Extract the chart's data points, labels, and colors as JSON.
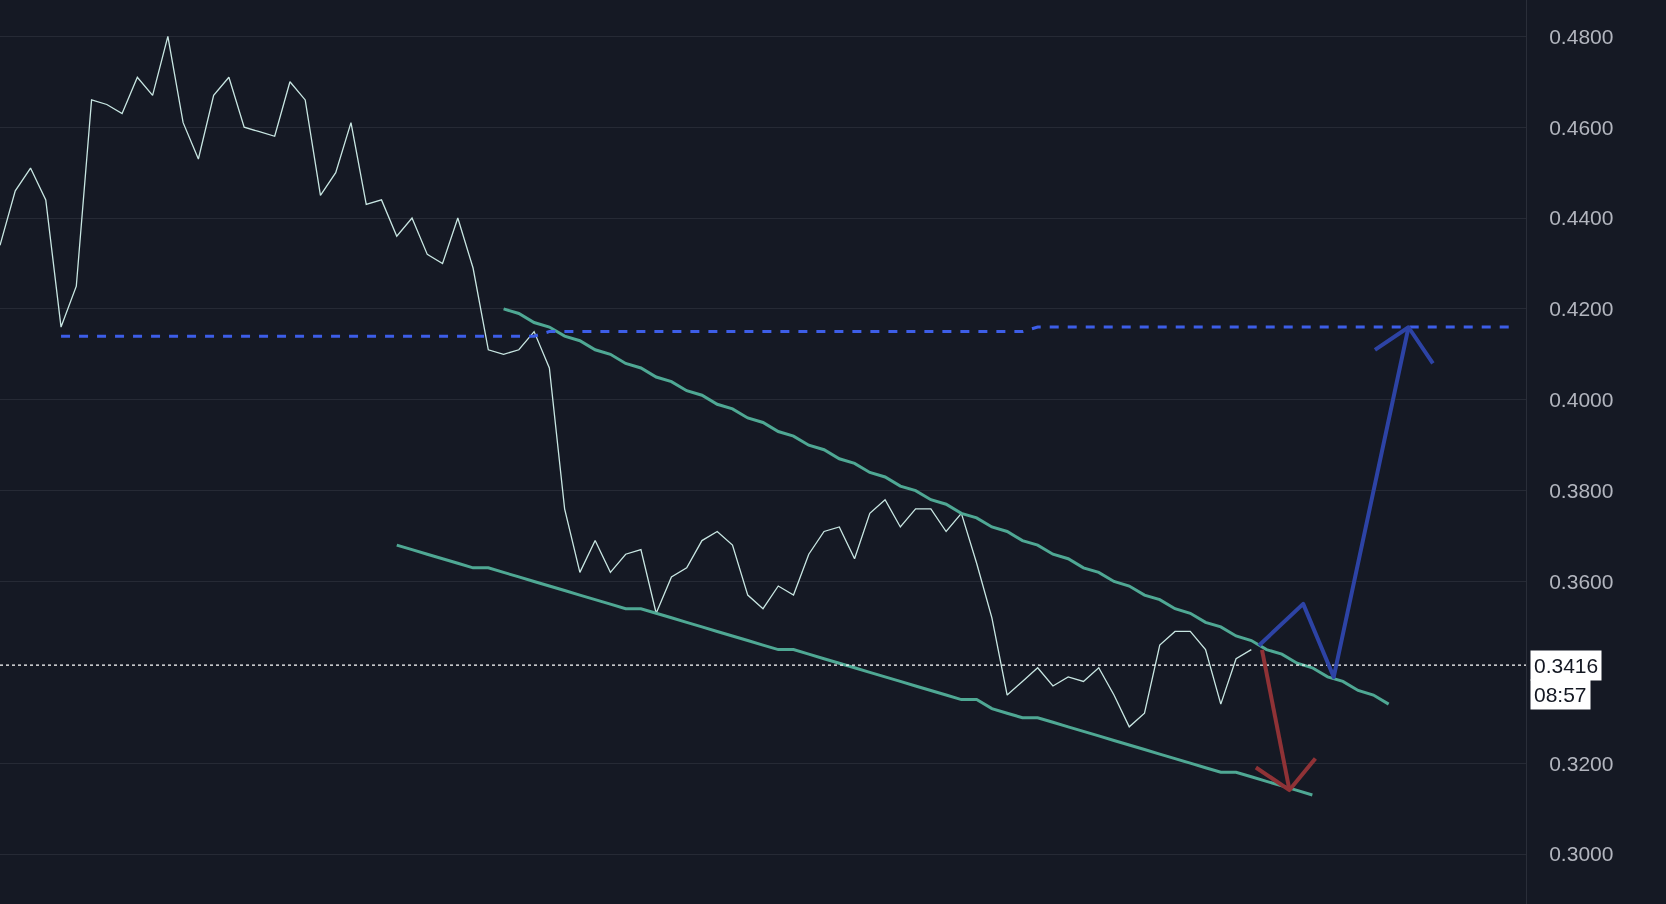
{
  "chart_data": {
    "type": "line",
    "categories": [
      null,
      null,
      null,
      null,
      null,
      null,
      null,
      null,
      null,
      null,
      null,
      null,
      null,
      null,
      null,
      null,
      null,
      null,
      null,
      null,
      null,
      null,
      null,
      null,
      null,
      null,
      null,
      null,
      null,
      null,
      null,
      null,
      null,
      null,
      null,
      null,
      null,
      null,
      null,
      null,
      null,
      null,
      null,
      null,
      null,
      null,
      null,
      null,
      null,
      null,
      null,
      null,
      null,
      null,
      null,
      null,
      null,
      null,
      null,
      null,
      null,
      null,
      null,
      null,
      null,
      null,
      null,
      null,
      null,
      null,
      null,
      null,
      null,
      null,
      null,
      null,
      null,
      null,
      null,
      null,
      null,
      null,
      null,
      null,
      null,
      null,
      null,
      null,
      null,
      null,
      null,
      null,
      null,
      null,
      null,
      null,
      null,
      null,
      null,
      null
    ],
    "series": [
      {
        "color": "#c8e6e2",
        "values": [
          0.434,
          0.446,
          0.451,
          0.444,
          0.416,
          0.425,
          0.466,
          0.465,
          0.463,
          0.471,
          0.467,
          0.48,
          0.461,
          0.453,
          0.467,
          0.471,
          0.46,
          0.459,
          0.458,
          0.47,
          0.466,
          0.445,
          0.45,
          0.461,
          0.443,
          0.444,
          0.436,
          0.44,
          0.432,
          0.43,
          0.44,
          0.429,
          0.411,
          0.41,
          0.411,
          0.415,
          0.407,
          0.376,
          0.362,
          0.369,
          0.362,
          0.366,
          0.367,
          0.353,
          0.361,
          0.363,
          0.369,
          0.371,
          0.368,
          0.357,
          0.354,
          0.359,
          0.357,
          0.366,
          0.371,
          0.372,
          0.365,
          0.375,
          0.378,
          0.372,
          0.376,
          0.376,
          0.371,
          0.375,
          0.364,
          0.352,
          0.335,
          0.338,
          0.341,
          0.337,
          0.339,
          0.338,
          0.341,
          0.335,
          0.328,
          0.331,
          0.346,
          0.349,
          0.349,
          0.345,
          0.333,
          0.343,
          0.345,
          null,
          null,
          null,
          null,
          null,
          null,
          null,
          null,
          null,
          null,
          null,
          null,
          null,
          null,
          null,
          null,
          null
        ]
      },
      {
        "color": "#4fa894",
        "values": [
          null,
          null,
          null,
          null,
          null,
          null,
          null,
          null,
          null,
          null,
          null,
          null,
          null,
          null,
          null,
          null,
          null,
          null,
          null,
          null,
          null,
          null,
          null,
          null,
          null,
          null,
          null,
          null,
          null,
          null,
          null,
          null,
          null,
          0.42,
          0.419,
          0.417,
          0.416,
          0.414,
          0.413,
          0.411,
          0.41,
          0.408,
          0.407,
          0.405,
          0.404,
          0.402,
          0.401,
          0.399,
          0.398,
          0.396,
          0.395,
          0.393,
          0.392,
          0.39,
          0.389,
          0.387,
          0.386,
          0.384,
          0.383,
          0.381,
          0.38,
          0.378,
          0.377,
          0.375,
          0.374,
          0.372,
          0.371,
          0.369,
          0.368,
          0.366,
          0.365,
          0.363,
          0.362,
          0.36,
          0.359,
          0.357,
          0.356,
          0.354,
          0.353,
          0.351,
          0.35,
          0.348,
          0.347,
          0.345,
          0.344,
          0.342,
          0.341,
          0.339,
          0.338,
          0.336,
          0.335,
          0.333,
          null,
          null,
          null,
          null,
          null,
          null,
          null,
          null
        ]
      },
      {
        "color": "#4fa894",
        "values": [
          null,
          null,
          null,
          null,
          null,
          null,
          null,
          null,
          null,
          null,
          null,
          null,
          null,
          null,
          null,
          null,
          null,
          null,
          null,
          null,
          null,
          null,
          null,
          null,
          null,
          null,
          0.368,
          0.367,
          0.366,
          0.365,
          0.364,
          0.363,
          0.363,
          0.362,
          0.361,
          0.36,
          0.359,
          0.358,
          0.357,
          0.356,
          0.355,
          0.354,
          0.354,
          0.353,
          0.352,
          0.351,
          0.35,
          0.349,
          0.348,
          0.347,
          0.346,
          0.345,
          0.345,
          0.344,
          0.343,
          0.342,
          0.341,
          0.34,
          0.339,
          0.338,
          0.337,
          0.336,
          0.335,
          0.334,
          0.334,
          0.332,
          0.331,
          0.33,
          0.33,
          0.329,
          0.328,
          0.327,
          0.326,
          0.325,
          0.324,
          0.323,
          0.322,
          0.321,
          0.32,
          0.319,
          0.318,
          0.318,
          0.317,
          0.316,
          0.315,
          0.314,
          0.313,
          null,
          null,
          null,
          null,
          null,
          null,
          null,
          null,
          null,
          null,
          null,
          null,
          null
        ]
      },
      {
        "color": "#3d5ee8",
        "line_style": "dashed",
        "values": [
          null,
          null,
          null,
          null,
          0.414,
          0.414,
          0.414,
          0.414,
          0.414,
          0.414,
          0.414,
          0.414,
          0.414,
          0.414,
          0.414,
          0.414,
          0.414,
          0.414,
          0.414,
          0.414,
          0.414,
          0.414,
          0.414,
          0.414,
          0.414,
          0.414,
          0.414,
          0.414,
          0.414,
          0.414,
          0.414,
          0.414,
          0.414,
          0.414,
          0.414,
          0.414,
          0.415,
          0.415,
          0.415,
          0.415,
          0.415,
          0.415,
          0.415,
          0.415,
          0.415,
          0.415,
          0.415,
          0.415,
          0.415,
          0.415,
          0.415,
          0.415,
          0.415,
          0.415,
          0.415,
          0.415,
          0.415,
          0.415,
          0.415,
          0.415,
          0.415,
          0.415,
          0.415,
          0.415,
          0.415,
          0.415,
          0.415,
          0.415,
          0.416,
          0.416,
          0.416,
          0.416,
          0.416,
          0.416,
          0.416,
          0.416,
          0.416,
          0.416,
          0.416,
          0.416,
          0.416,
          0.416,
          0.416,
          0.416,
          0.416,
          0.416,
          0.416,
          0.416,
          0.416,
          0.416,
          0.416,
          0.416,
          0.416,
          0.416,
          0.416,
          0.416,
          0.416,
          0.416,
          0.416,
          0.416
        ]
      }
    ],
    "ylim": [
      0.289,
      0.488
    ],
    "yticks": [
      {
        "value": 0.3,
        "label": "0.3000"
      },
      {
        "value": 0.32,
        "label": "0.3200"
      },
      {
        "value": 0.36,
        "label": "0.3600"
      },
      {
        "value": 0.38,
        "label": "0.3800"
      },
      {
        "value": 0.4,
        "label": "0.4000"
      },
      {
        "value": 0.42,
        "label": "0.4200"
      },
      {
        "value": 0.44,
        "label": "0.4400"
      },
      {
        "value": 0.46,
        "label": "0.4600"
      },
      {
        "value": 0.48,
        "label": "0.4800"
      }
    ],
    "ref_lines": [
      {
        "axis": "y",
        "value": 0.3416,
        "label": "0.3416",
        "color": "#ffffff",
        "line_style": "dotted"
      }
    ],
    "annotations": [
      "08:57"
    ],
    "tick_labels": "y",
    "grid": "y"
  }
}
